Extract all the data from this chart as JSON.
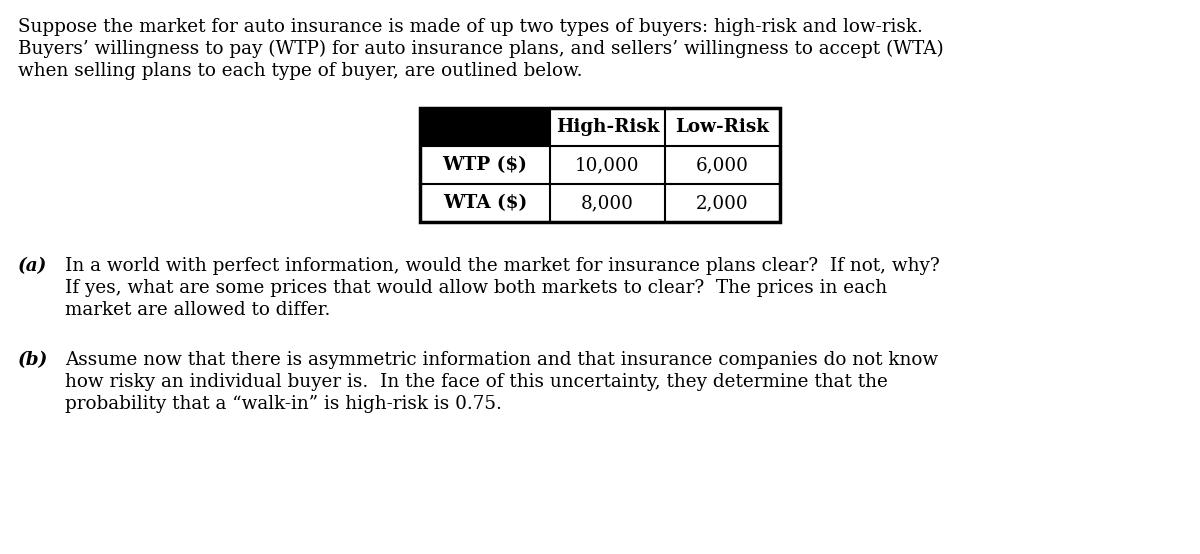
{
  "intro_text_lines": [
    "Suppose the market for auto insurance is made of up two types of buyers: high-risk and low-risk.",
    "Buyers’ willingness to pay (WTP) for auto insurance plans, and sellers’ willingness to accept (WTA)",
    "when selling plans to each type of buyer, are outlined below."
  ],
  "table": {
    "col_headers": [
      "High-Risk",
      "Low-Risk"
    ],
    "row_headers": [
      "WTP ($)",
      "WTA ($)"
    ],
    "values": [
      [
        "10,000",
        "6,000"
      ],
      [
        "8,000",
        "2,000"
      ]
    ]
  },
  "part_a_label": "(a)",
  "part_a_text_lines": [
    "In a world with perfect information, would the market for insurance plans clear?  If not, why?",
    "If yes, what are some prices that would allow both markets to clear?  The prices in each",
    "market are allowed to differ."
  ],
  "part_b_label": "(b)",
  "part_b_text_lines": [
    "Assume now that there is asymmetric information and that insurance companies do not know",
    "how risky an individual buyer is.  In the face of this uncertainty, they determine that the",
    "probability that a “walk-in” is high-risk is 0.75."
  ],
  "bg_color": "#ffffff",
  "text_color": "#000000",
  "font_size": 13.2,
  "table_font_size": 13.2
}
